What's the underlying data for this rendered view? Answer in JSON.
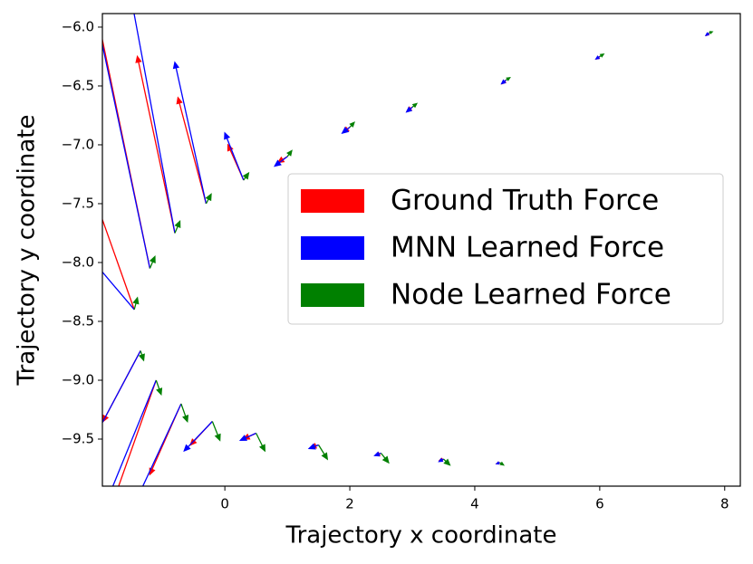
{
  "chart_data": {
    "type": "quiver",
    "xlabel": "Trajectory x coordinate",
    "ylabel": "Trajectory y coordinate",
    "xlim": [
      -1.96,
      8.25
    ],
    "ylim": [
      -9.9,
      -5.885
    ],
    "xticks": [
      0,
      2,
      4,
      6,
      8
    ],
    "yticks": [
      {
        "value": -6.0,
        "label": "−6.0"
      },
      {
        "value": -6.5,
        "label": "−6.5"
      },
      {
        "value": -7.0,
        "label": "−7.0"
      },
      {
        "value": -7.5,
        "label": "−7.5"
      },
      {
        "value": -8.0,
        "label": "−8.0"
      },
      {
        "value": -8.5,
        "label": "−8.5"
      },
      {
        "value": -9.0,
        "label": "−9.0"
      },
      {
        "value": -9.5,
        "label": "−9.5"
      }
    ],
    "legend_loc": "center right",
    "x": [
      7.75,
      6,
      4.5,
      3,
      2,
      1,
      0.3,
      -0.3,
      -0.8,
      -1.2,
      -1.45,
      -1.35,
      -1.1,
      -0.7,
      -0.2,
      0.5,
      1.5,
      2.5,
      3.5,
      4.4
    ],
    "y": [
      -6.05,
      -6.25,
      -6.45,
      -6.68,
      -6.85,
      -7.1,
      -7.3,
      -7.5,
      -7.75,
      -8.05,
      -8.4,
      -8.75,
      -9.0,
      -9.2,
      -9.35,
      -9.45,
      -9.55,
      -9.62,
      -9.67,
      -9.7
    ],
    "series": [
      {
        "name": "Ground Truth Force",
        "color": "#ff0000",
        "u": [
          -0.04,
          -0.05,
          -0.06,
          -0.08,
          -0.1,
          -0.15,
          -0.25,
          -0.45,
          -0.6,
          -0.9,
          -0.6,
          -0.6,
          -0.8,
          -0.5,
          -0.35,
          -0.2,
          -0.12,
          -0.08,
          -0.06,
          -0.05
        ],
        "v": [
          -0.02,
          -0.02,
          -0.03,
          -0.03,
          -0.04,
          -0.05,
          0.3,
          0.9,
          1.5,
          2.3,
          0.9,
          -0.6,
          -1.2,
          -0.6,
          -0.2,
          -0.05,
          -0.02,
          -0.02,
          -0.01,
          -0.01
        ]
      },
      {
        "name": "MNN Learned Force",
        "color": "#0000ff",
        "u": [
          -0.05,
          -0.06,
          -0.07,
          -0.09,
          -0.12,
          -0.2,
          -0.3,
          -0.5,
          -0.7,
          -1.0,
          -0.8,
          -0.7,
          -1.0,
          -0.7,
          -0.45,
          -0.25,
          -0.15,
          -0.1,
          -0.07,
          -0.05
        ],
        "v": [
          -0.02,
          -0.02,
          -0.03,
          -0.04,
          -0.05,
          -0.08,
          0.4,
          1.2,
          2.0,
          2.5,
          0.5,
          -0.7,
          -1.3,
          -0.8,
          -0.25,
          -0.06,
          -0.03,
          -0.02,
          -0.02,
          -0.01
        ]
      },
      {
        "name": "Node Learned Force",
        "color": "#008000",
        "u": [
          0.05,
          0.06,
          0.06,
          0.07,
          0.07,
          0.07,
          0.08,
          0.08,
          0.08,
          0.08,
          0.05,
          0.05,
          0.08,
          0.1,
          0.12,
          0.14,
          0.14,
          0.12,
          0.1,
          0.06
        ],
        "v": [
          0.01,
          0.02,
          0.02,
          0.03,
          0.04,
          0.05,
          0.06,
          0.08,
          0.1,
          0.1,
          0.1,
          -0.08,
          -0.12,
          -0.15,
          -0.16,
          -0.15,
          -0.12,
          -0.08,
          -0.05,
          -0.02
        ]
      }
    ]
  }
}
